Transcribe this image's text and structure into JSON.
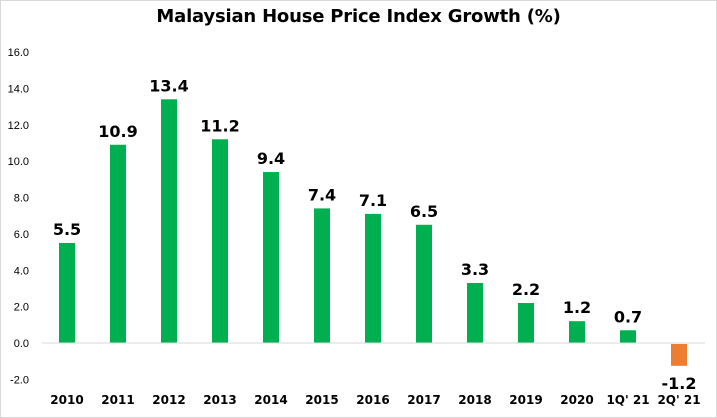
{
  "chart_data": {
    "type": "bar",
    "title": "Malaysian House Price Index Growth (%)",
    "xlabel": "",
    "ylabel": "",
    "ylim": [
      -2,
      16
    ],
    "yticks": [
      "16.0",
      "14.0",
      "12.0",
      "10.0",
      "8.0",
      "6.0",
      "4.0",
      "2.0",
      "0.0",
      "-2.0"
    ],
    "ytick_values": [
      16,
      14,
      12,
      10,
      8,
      6,
      4,
      2,
      0,
      -2
    ],
    "grid": false,
    "legend": "none",
    "categories": [
      "2010",
      "2011",
      "2012",
      "2013",
      "2014",
      "2015",
      "2016",
      "2017",
      "2018",
      "2019",
      "2020",
      "1Q' 21",
      "2Q' 21"
    ],
    "values": [
      5.5,
      10.9,
      13.4,
      11.2,
      9.4,
      7.4,
      7.1,
      6.5,
      3.3,
      2.2,
      1.2,
      0.7,
      -1.2
    ],
    "data_labels": [
      "5.5",
      "10.9",
      "13.4",
      "11.2",
      "9.4",
      "7.4",
      "7.1",
      "6.5",
      "3.3",
      "2.2",
      "1.2",
      "0.7",
      "-1.2"
    ],
    "colors": {
      "positive": "#00b050",
      "negative": "#ed7d31",
      "axis": "#d9d9d9"
    }
  }
}
